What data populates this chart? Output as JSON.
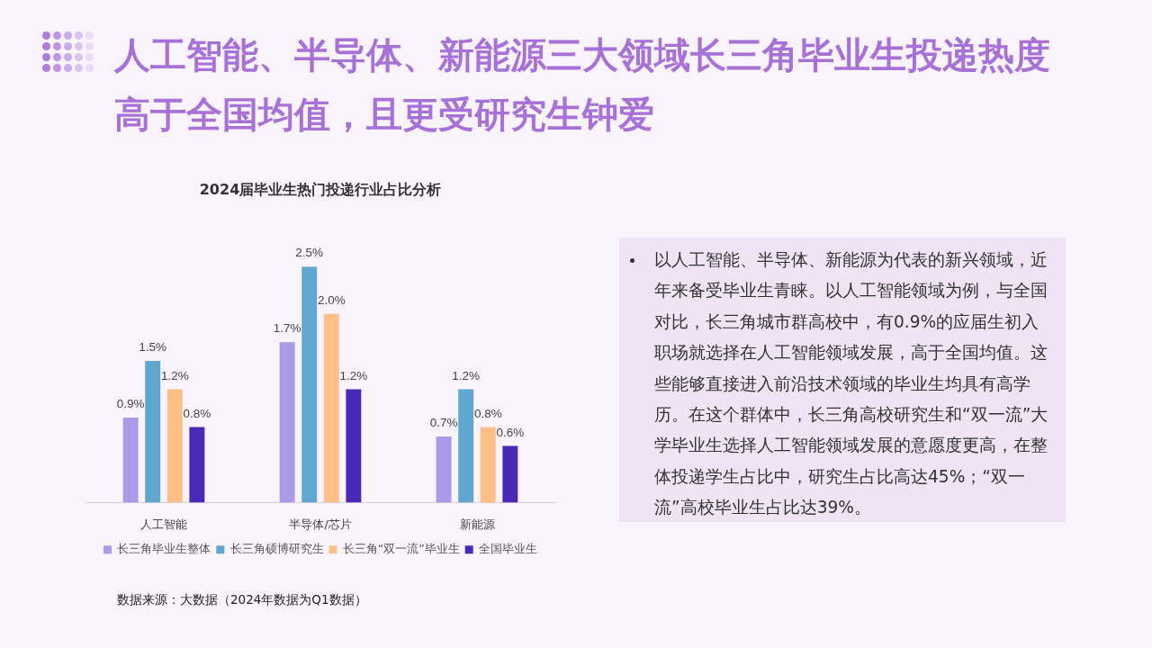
{
  "chart_data": {
    "type": "bar",
    "title": "人工智能、半导体、新能源三大领域长三角毕业生投递热度高于全国均值，且更受研究生钟爱",
    "subtitle": "2024届毕业生热门投递行业占比分析",
    "categories": [
      "人工智能",
      "半导体/芯片",
      "新能源"
    ],
    "series": [
      {
        "name": "长三角毕业生整体",
        "color": "#a99be8",
        "values": [
          0.9,
          1.7,
          0.7
        ],
        "value_labels": [
          "0.9%",
          "1.7%",
          "0.7%"
        ]
      },
      {
        "name": "长三角硕博研究生",
        "color": "#5fa6d0",
        "values": [
          1.5,
          2.5,
          1.2
        ],
        "value_labels": [
          "1.5%",
          "2.5%",
          "1.2%"
        ]
      },
      {
        "name": "长三角“双一流”毕业生",
        "color": "#ffbf86",
        "values": [
          1.2,
          2.0,
          0.8
        ],
        "value_labels": [
          "1.2%",
          "2.0%",
          "0.8%"
        ]
      },
      {
        "name": "全国毕业生",
        "color": "#4a29b9",
        "values": [
          0.8,
          1.2,
          0.6
        ],
        "value_labels": [
          "0.8%",
          "1.2%",
          "0.6%"
        ]
      }
    ],
    "legend": "bottom",
    "grid": false,
    "tick_labels": "x",
    "annotations": [
      "以人工智能、半导体、新能源为代表的新兴领域，近年来备受毕业生青睐。以人工智能领域为例，与全国对比，长三角城市群高校中，有0.9%的应届生初入职场就选择在人工智能领域发展，高于全国均值。这些能够直接进入前沿技术领域的毕业生均具有高学历。在这个群体中，长三角高校研究生和“双一流”大学毕业生选择人工智能领域发展的意愿度更高，在整体投递学生占比中，研究生占比高达45%；“双一流”高校毕业生占比达39%。",
      "数据来源：大数据（2024年数据为Q1数据）"
    ]
  }
}
